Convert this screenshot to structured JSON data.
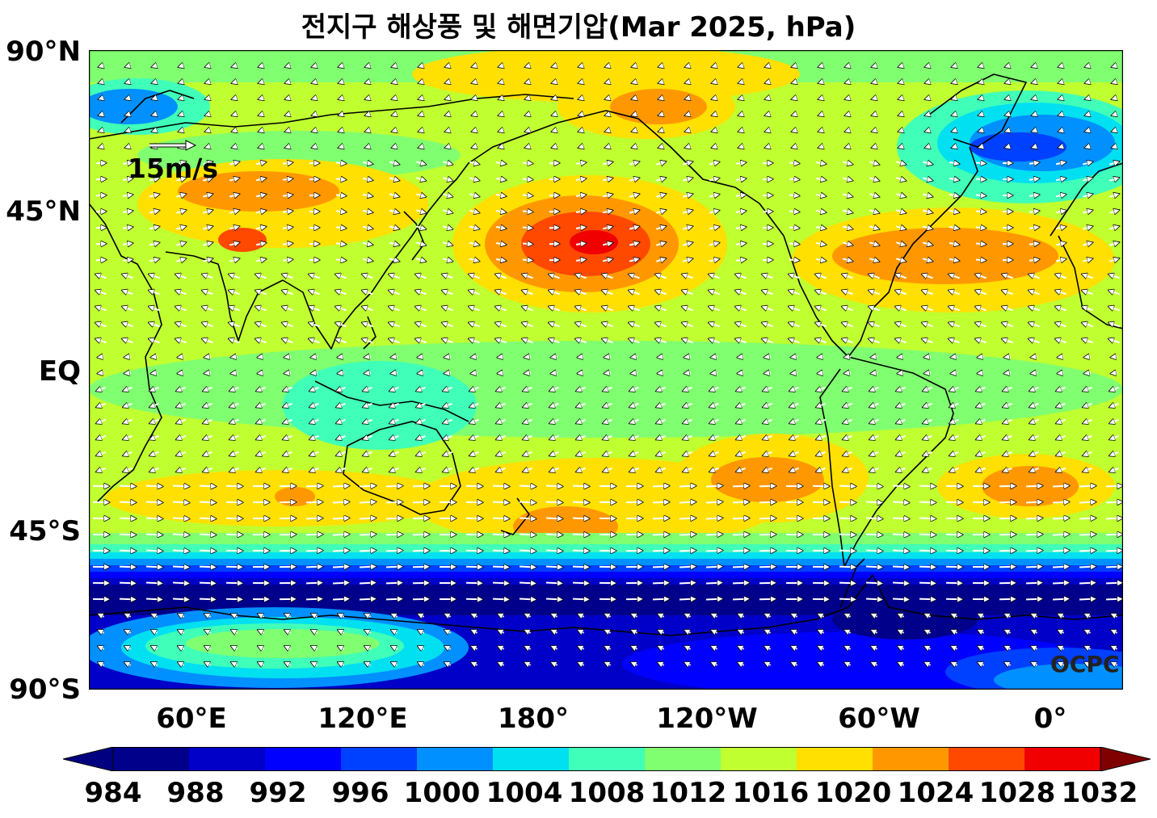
{
  "title": "전지구 해상풍 및 해면기압(Mar 2025, hPa)",
  "lat_labels": [
    "90°N",
    "45°N",
    "EQ",
    "45°S",
    "90°S"
  ],
  "lon_labels": [
    "60°E",
    "120°E",
    "180°",
    "120°W",
    "60°W",
    "0°"
  ],
  "wind_scale_label": "15m/s",
  "credit": "OCPC",
  "colorbar": {
    "ticks": [
      "984",
      "988",
      "992",
      "996",
      "1000",
      "1004",
      "1008",
      "1012",
      "1016",
      "1020",
      "1024",
      "1028",
      "1032"
    ],
    "colors": [
      "#00008b",
      "#0000c8",
      "#0000ff",
      "#0040ff",
      "#0090ff",
      "#00e0f0",
      "#40ffb8",
      "#80ff70",
      "#c0ff30",
      "#ffe000",
      "#ff9800",
      "#ff4800",
      "#f00000"
    ],
    "under_color": "#000080",
    "over_color": "#800000"
  },
  "background_level_color": "#c0ff30"
}
